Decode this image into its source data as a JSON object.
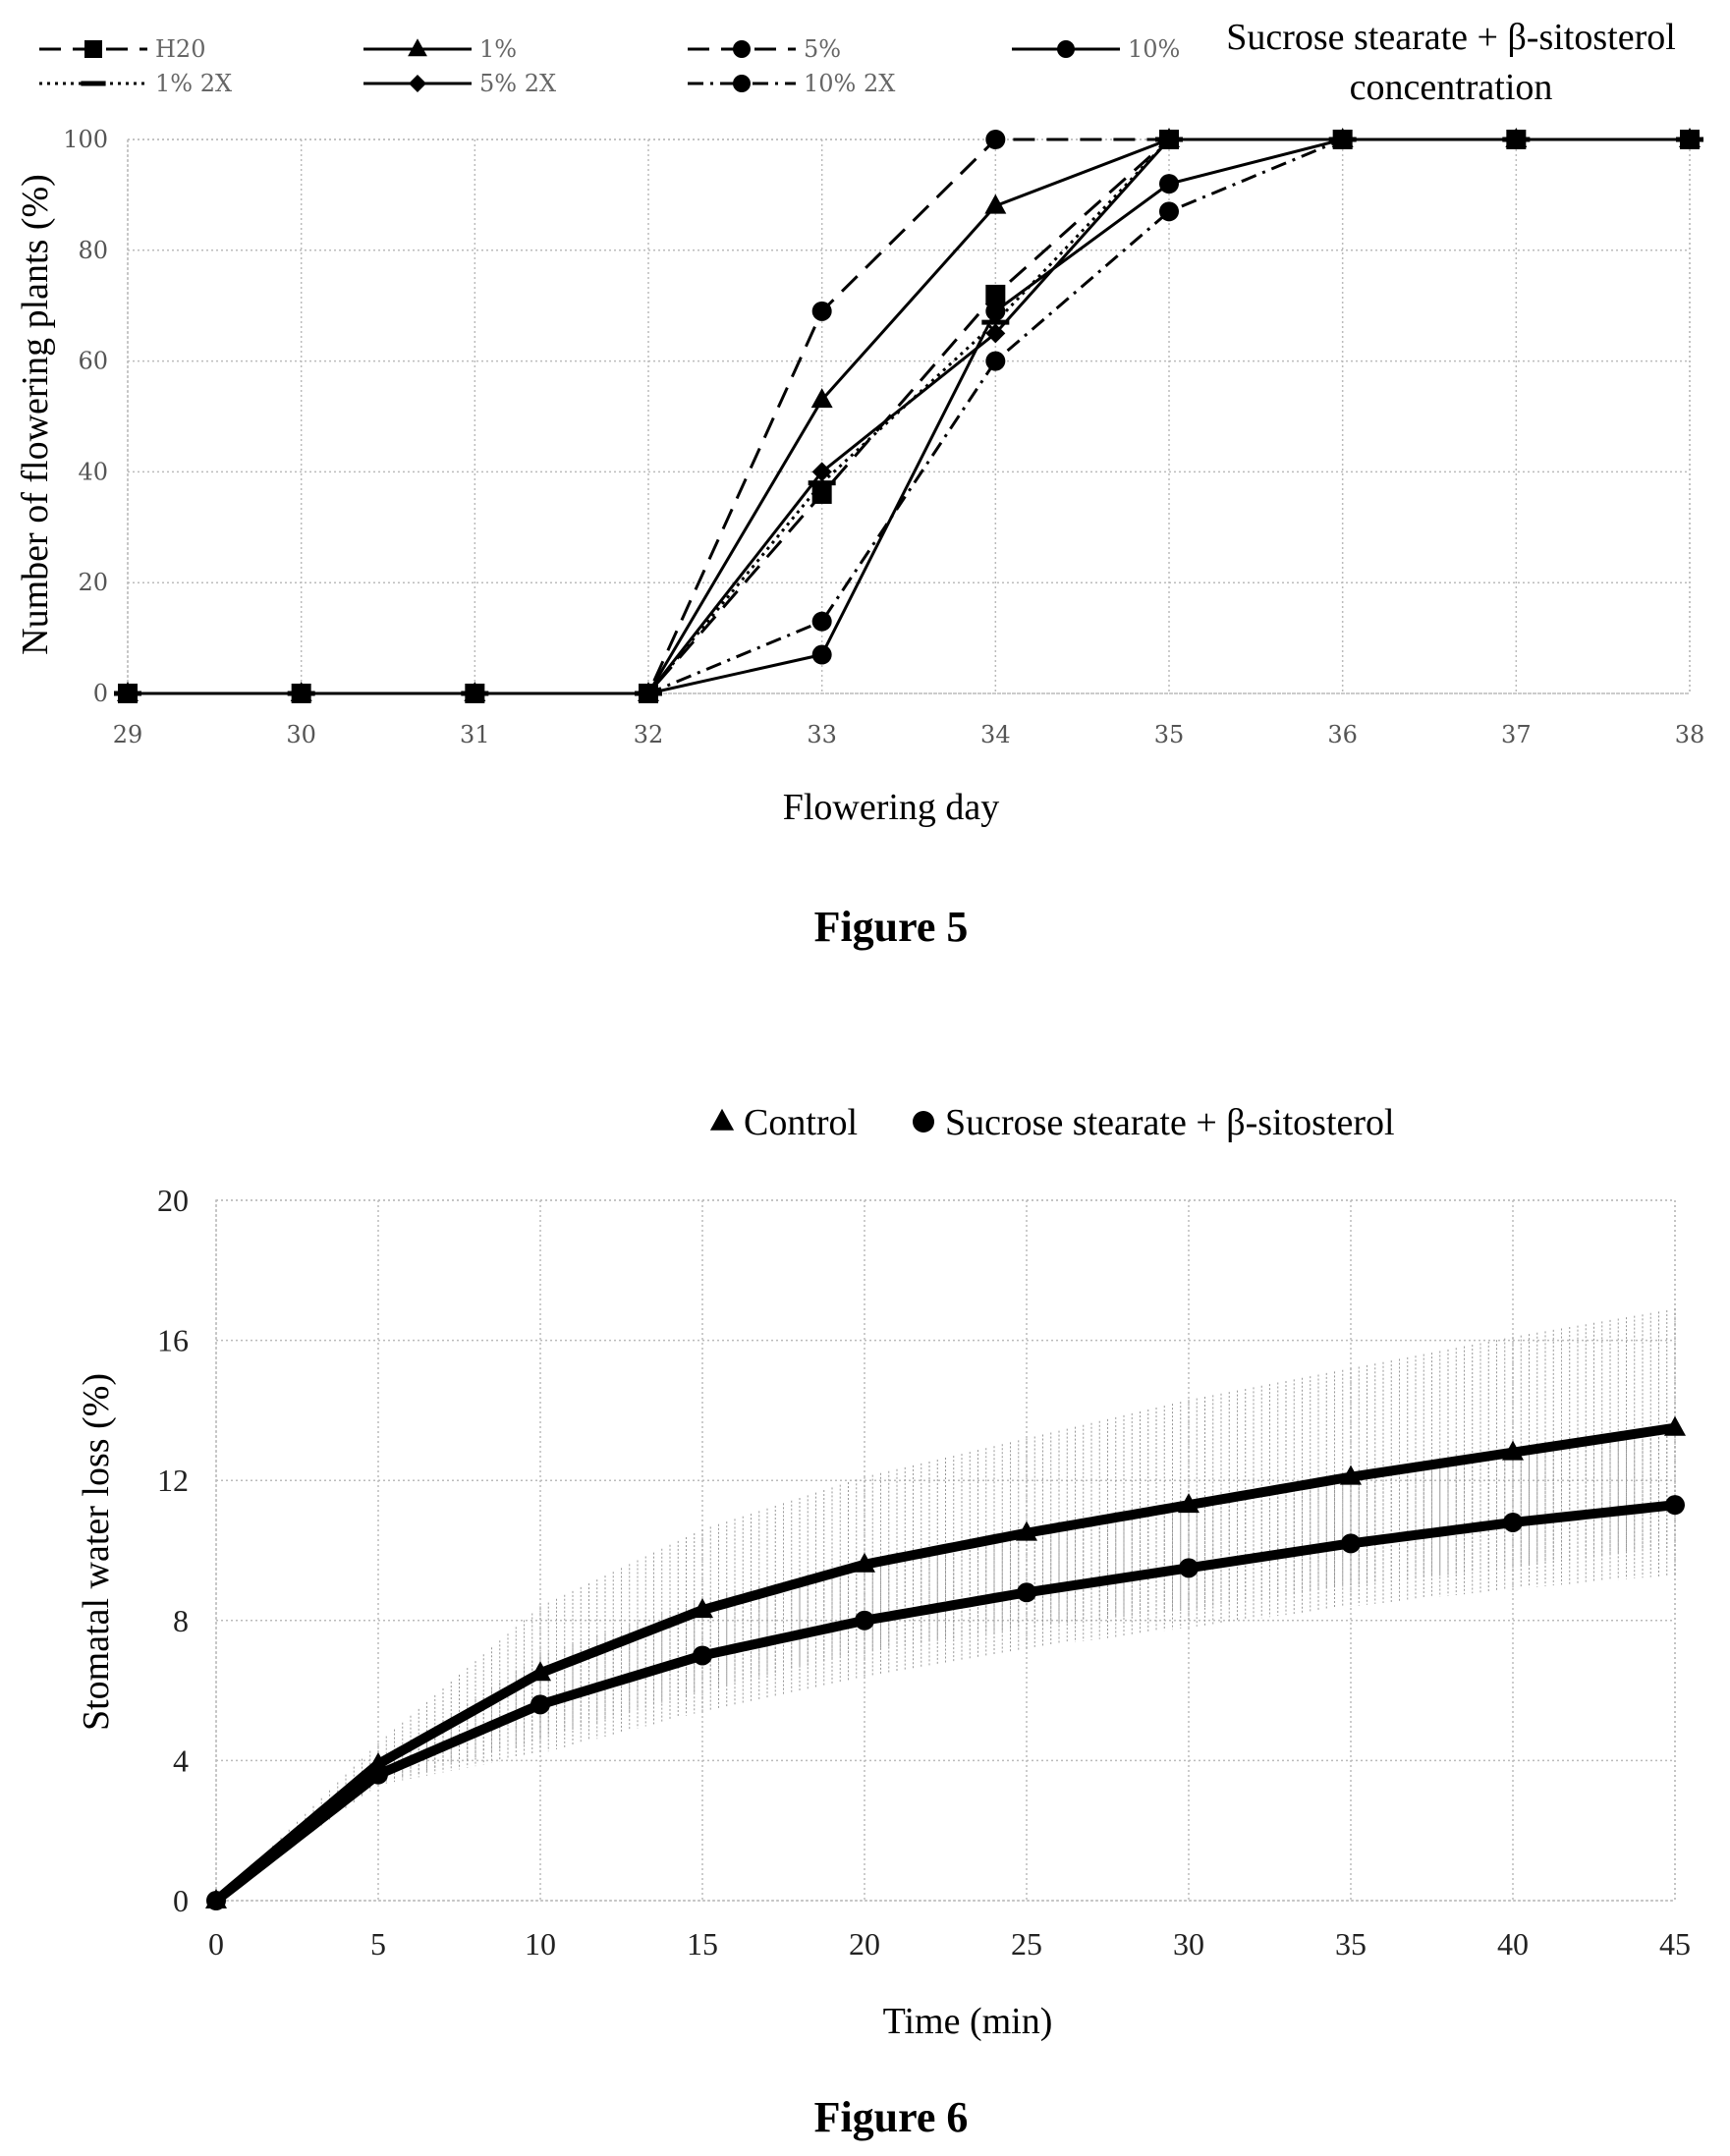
{
  "chart_data": [
    {
      "type": "line",
      "figure_label": "Figure 5",
      "legend_title": [
        "Sucrose stearate + β-sitosterol",
        "concentration"
      ],
      "xlabel": "Flowering day",
      "ylabel": "Number of flowering plants (%)",
      "xlim": [
        29,
        38
      ],
      "ylim": [
        0,
        100
      ],
      "xticks": [
        "29",
        "30",
        "31",
        "32",
        "33",
        "34",
        "35",
        "36",
        "37",
        "38"
      ],
      "yticks": [
        "0",
        "20",
        "40",
        "60",
        "80",
        "100"
      ],
      "grid": true,
      "legend_position": "top",
      "x": [
        29,
        30,
        31,
        32,
        33,
        34,
        35,
        36,
        37,
        38
      ],
      "series": [
        {
          "name": "H20",
          "marker": "square",
          "dash": "dashed",
          "values": [
            0,
            0,
            0,
            0,
            36,
            72,
            100,
            100,
            100,
            100
          ]
        },
        {
          "name": "1%",
          "marker": "triangle",
          "dash": "solid",
          "values": [
            0,
            0,
            0,
            0,
            53,
            88,
            100,
            100,
            100,
            100
          ]
        },
        {
          "name": "5%",
          "marker": "circle",
          "dash": "dashed",
          "values": [
            0,
            0,
            0,
            0,
            69,
            100,
            100,
            100,
            100,
            100
          ]
        },
        {
          "name": "10%",
          "marker": "circle",
          "dash": "solid",
          "values": [
            0,
            0,
            0,
            0,
            7,
            69,
            92,
            100,
            100,
            100
          ]
        },
        {
          "name": "1% 2X",
          "marker": "dash",
          "dash": "dotted",
          "values": [
            0,
            0,
            0,
            0,
            38,
            67,
            100,
            100,
            100,
            100
          ]
        },
        {
          "name": "5% 2X",
          "marker": "diamond",
          "dash": "solid",
          "values": [
            0,
            0,
            0,
            0,
            40,
            65,
            100,
            100,
            100,
            100
          ]
        },
        {
          "name": "10% 2X",
          "marker": "circle",
          "dash": "dashdot",
          "values": [
            0,
            0,
            0,
            0,
            13,
            60,
            87,
            100,
            100,
            100
          ]
        }
      ]
    },
    {
      "type": "line",
      "figure_label": "Figure 6",
      "xlabel": "Time (min)",
      "ylabel": "Stomatal water loss (%)",
      "xlim": [
        0,
        45
      ],
      "ylim": [
        0,
        20
      ],
      "xticks": [
        "0",
        "5",
        "10",
        "15",
        "20",
        "25",
        "30",
        "35",
        "40",
        "45"
      ],
      "yticks": [
        "0",
        "4",
        "8",
        "12",
        "16",
        "20"
      ],
      "grid": true,
      "legend_position": "top",
      "x": [
        0,
        5,
        10,
        15,
        20,
        25,
        30,
        35,
        40,
        45
      ],
      "series": [
        {
          "name": "Control",
          "marker": "triangle",
          "values": [
            0,
            3.9,
            6.5,
            8.3,
            9.6,
            10.5,
            11.3,
            12.1,
            12.8,
            13.5
          ],
          "error": [
            0,
            0.6,
            1.9,
            2.3,
            2.5,
            2.7,
            3.0,
            3.1,
            3.3,
            3.4
          ]
        },
        {
          "name": "Sucrose stearate + β-sitosterol",
          "marker": "circle",
          "values": [
            0,
            3.6,
            5.6,
            7.0,
            8.0,
            8.8,
            9.5,
            10.2,
            10.8,
            11.3
          ],
          "error": [
            0,
            0.3,
            1.4,
            1.6,
            1.6,
            1.6,
            1.7,
            1.8,
            1.9,
            2.0
          ]
        }
      ]
    }
  ]
}
